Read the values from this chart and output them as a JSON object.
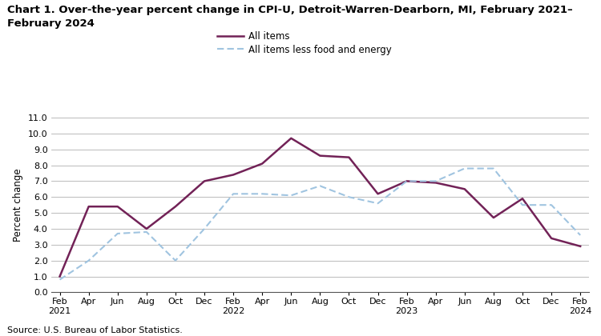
{
  "title_line1": "Chart 1. Over-the-year percent change in CPI-U, Detroit-Warren-Dearborn, MI, February 2021–",
  "title_line2": "February 2024",
  "ylabel": "Percent change",
  "source": "Source: U.S. Bureau of Labor Statistics.",
  "legend_all_items": "All items",
  "legend_core": "All items less food and energy",
  "x_labels": [
    "Feb\n2021",
    "Apr",
    "Jun",
    "Aug",
    "Oct",
    "Dec",
    "Feb\n2022",
    "Apr",
    "Jun",
    "Aug",
    "Oct",
    "Dec",
    "Feb\n2023",
    "Apr",
    "Jun",
    "Aug",
    "Oct",
    "Dec",
    "Feb\n2024"
  ],
  "x_tick_positions": [
    0,
    1,
    2,
    3,
    4,
    5,
    6,
    7,
    8,
    9,
    10,
    11,
    12,
    13,
    14,
    15,
    16,
    17,
    18
  ],
  "ylim": [
    0.0,
    11.0
  ],
  "yticks": [
    0.0,
    1.0,
    2.0,
    3.0,
    4.0,
    5.0,
    6.0,
    7.0,
    8.0,
    9.0,
    10.0,
    11.0
  ],
  "all_items": [
    1.0,
    5.4,
    5.4,
    4.0,
    5.4,
    7.0,
    7.4,
    8.1,
    9.7,
    8.6,
    8.5,
    6.2,
    7.0,
    6.9,
    6.5,
    4.7,
    5.9,
    3.4,
    2.9
  ],
  "core_items": [
    0.8,
    2.0,
    3.7,
    3.8,
    2.0,
    4.0,
    6.2,
    6.2,
    6.1,
    6.7,
    6.0,
    5.6,
    7.0,
    7.0,
    7.8,
    7.8,
    5.5,
    5.5,
    3.6
  ],
  "all_items_color": "#722257",
  "core_items_color": "#a0c4e0",
  "background_color": "#ffffff",
  "grid_color": "#b0b0b0"
}
